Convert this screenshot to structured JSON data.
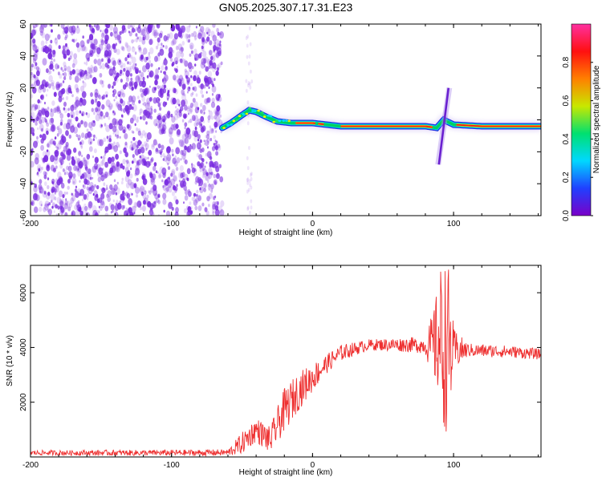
{
  "title": "GN05.2025.307.17.31.E23",
  "colors": {
    "snr_line": "#ee3030",
    "scatter": "#7a2ce0",
    "colorbar": [
      "#7a00c8",
      "#2040ff",
      "#00d8ff",
      "#00e070",
      "#c8e800",
      "#ff8000",
      "#ff1010",
      "#ff30a0"
    ]
  },
  "chart_data": [
    {
      "type": "heatmap",
      "name": "spectrogram",
      "xlabel": "Height of straight line (km)",
      "ylabel": "Frequency (Hz)",
      "xlim": [
        -200,
        162
      ],
      "ylim": [
        -60,
        60
      ],
      "xticks": [
        -200,
        -100,
        0,
        100
      ],
      "yticks": [
        -60,
        -40,
        -20,
        0,
        20,
        40,
        60
      ],
      "xtick_labels": [
        "-200",
        "-100",
        "0",
        "100"
      ],
      "ytick_labels": [
        "-60",
        "-40",
        "-20",
        "0",
        "20",
        "40",
        "60"
      ],
      "noise_region_x": [
        -200,
        -64
      ],
      "band_path": [
        [
          -64,
          -5
        ],
        [
          -58,
          -2
        ],
        [
          -50,
          3
        ],
        [
          -45,
          6
        ],
        [
          -40,
          5
        ],
        [
          -33,
          2
        ],
        [
          -25,
          -1
        ],
        [
          -15,
          -2
        ],
        [
          0,
          -2
        ],
        [
          20,
          -4
        ],
        [
          80,
          -4
        ],
        [
          88,
          -5
        ],
        [
          93,
          0
        ],
        [
          100,
          -3
        ],
        [
          120,
          -4
        ],
        [
          162,
          -4
        ]
      ],
      "dispersion_spike": {
        "x": 93,
        "y_range": [
          -28,
          20
        ]
      },
      "colorbar": {
        "label": "Normalized spectral amplitude",
        "range": [
          0,
          1
        ],
        "ticks": [
          0.0,
          0.2,
          0.4,
          0.6,
          0.8
        ],
        "tick_labels": [
          "0.0",
          "0.2",
          "0.4",
          "0.6",
          "0.8"
        ]
      }
    },
    {
      "type": "line",
      "name": "snr",
      "xlabel": "Height of straight line (km)",
      "ylabel": "SNR (10 * v/v)",
      "xlim": [
        -200,
        162
      ],
      "ylim": [
        0,
        7000
      ],
      "xticks": [
        -200,
        -100,
        0,
        100
      ],
      "yticks": [
        2000,
        4000,
        6000
      ],
      "xtick_labels": [
        "-200",
        "-100",
        "0",
        "100"
      ],
      "ytick_labels": [
        "2000",
        "4000",
        "6000"
      ],
      "trend": [
        [
          -200,
          150
        ],
        [
          -100,
          150
        ],
        [
          -60,
          160
        ],
        [
          -50,
          500
        ],
        [
          -40,
          1000
        ],
        [
          -30,
          600
        ],
        [
          -20,
          1700
        ],
        [
          -10,
          2400
        ],
        [
          0,
          2900
        ],
        [
          10,
          3400
        ],
        [
          20,
          3800
        ],
        [
          40,
          4100
        ],
        [
          70,
          4100
        ],
        [
          85,
          4050
        ],
        [
          90,
          4300
        ],
        [
          95,
          4000
        ],
        [
          100,
          3900
        ],
        [
          110,
          3900
        ],
        [
          140,
          3850
        ],
        [
          162,
          3750
        ]
      ],
      "noise_amplitude": [
        [
          -200,
          90
        ],
        [
          -60,
          120
        ],
        [
          -50,
          400
        ],
        [
          -30,
          500
        ],
        [
          -20,
          800
        ],
        [
          -10,
          700
        ],
        [
          10,
          350
        ],
        [
          40,
          200
        ],
        [
          80,
          300
        ],
        [
          88,
          1800
        ],
        [
          92,
          3200
        ],
        [
          97,
          3000
        ],
        [
          100,
          800
        ],
        [
          110,
          250
        ],
        [
          162,
          200
        ]
      ]
    }
  ]
}
